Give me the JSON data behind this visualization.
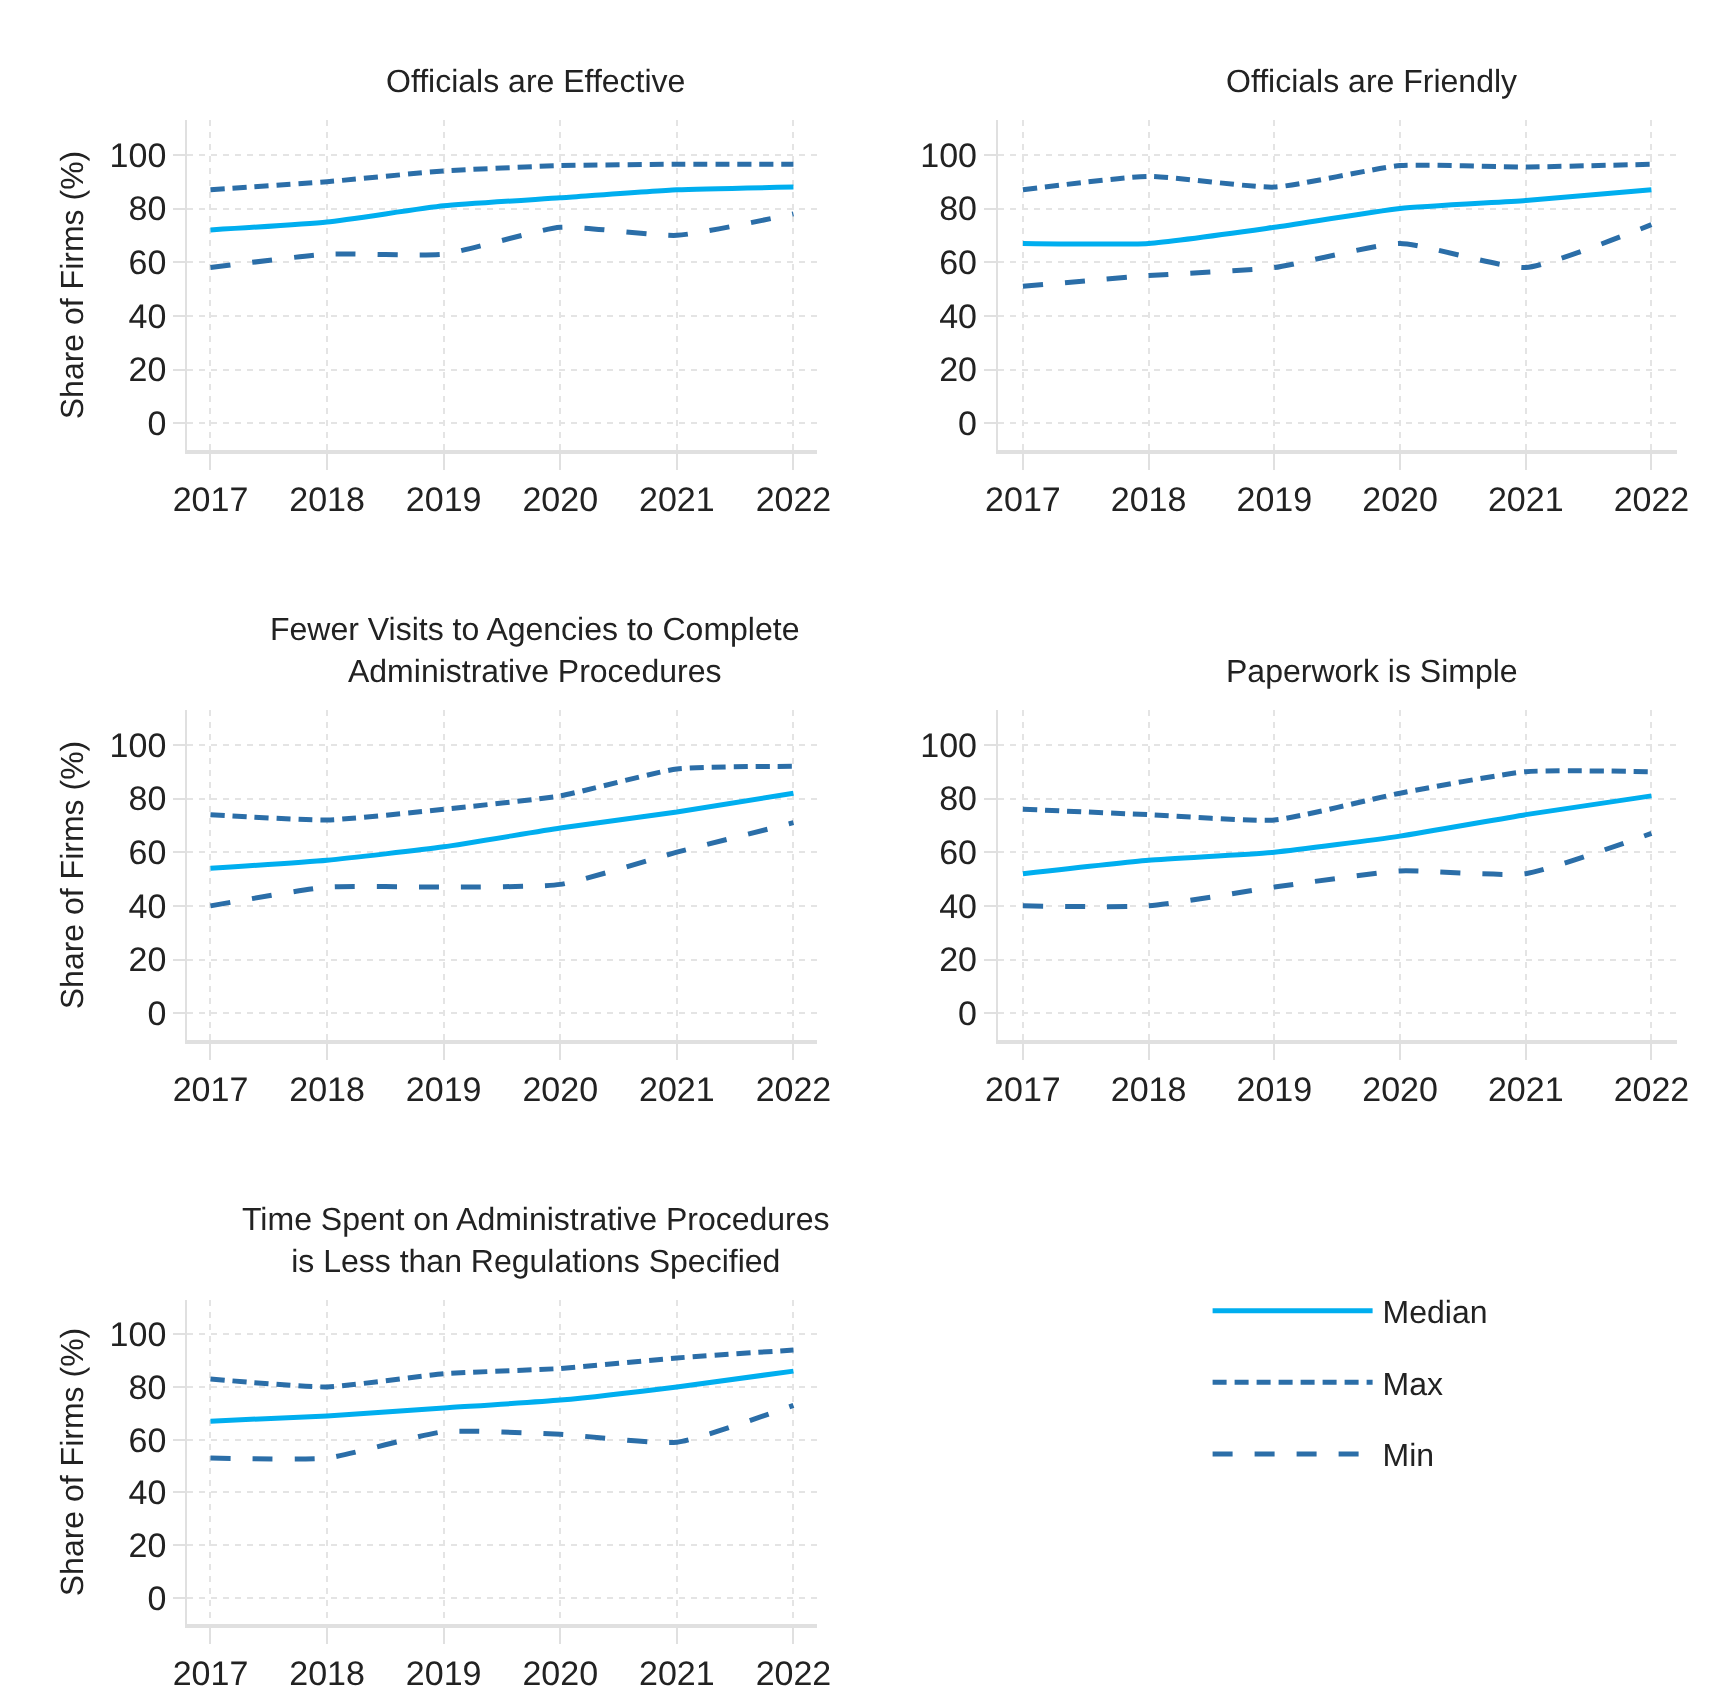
{
  "chart_data": [
    {
      "type": "line",
      "title": "Officials are Effective",
      "ylabel": "Share of Firms (%)",
      "x": [
        2017,
        2018,
        2019,
        2020,
        2021,
        2022
      ],
      "xlim": [
        2016.8,
        2022.2
      ],
      "xticks": [
        2017,
        2018,
        2019,
        2020,
        2021,
        2022
      ],
      "ylim": [
        -10,
        113
      ],
      "yticks": [
        0,
        20,
        40,
        60,
        80,
        100
      ],
      "grid": true,
      "legend": "bottom right",
      "series": [
        {
          "name": "Median",
          "color": "#00aeef",
          "line_style": "solid",
          "values": [
            72,
            75,
            81,
            84,
            87,
            88
          ]
        },
        {
          "name": "Max",
          "color": "#2b6ea8",
          "line_style": "dashed",
          "values": [
            87,
            90,
            94,
            96,
            96.5,
            96.5
          ]
        },
        {
          "name": "Min",
          "color": "#2b6ea8",
          "line_style": "dashed",
          "values": [
            58,
            63,
            63,
            73,
            70,
            78
          ]
        }
      ]
    },
    {
      "type": "line",
      "title": "Officials are Friendly",
      "x": [
        2017,
        2018,
        2019,
        2020,
        2021,
        2022
      ],
      "xlim": [
        2016.8,
        2022.2
      ],
      "xticks": [
        2017,
        2018,
        2019,
        2020,
        2021,
        2022
      ],
      "ylim": [
        -10,
        113
      ],
      "yticks": [
        0,
        20,
        40,
        60,
        80,
        100
      ],
      "grid": true,
      "series": [
        {
          "name": "Median",
          "color": "#00aeef",
          "line_style": "solid",
          "values": [
            67,
            67,
            73,
            80,
            83,
            87
          ]
        },
        {
          "name": "Max",
          "color": "#2b6ea8",
          "line_style": "dashed",
          "values": [
            87,
            92,
            88,
            96,
            95.5,
            96.5
          ]
        },
        {
          "name": "Min",
          "color": "#2b6ea8",
          "line_style": "dashed",
          "values": [
            51,
            55,
            58,
            67,
            58,
            74
          ]
        }
      ]
    },
    {
      "type": "line",
      "title": "Fewer Visits to Agencies to Complete Administrative Procedures",
      "ylabel": "Share of Firms (%)",
      "x": [
        2017,
        2018,
        2019,
        2020,
        2021,
        2022
      ],
      "xlim": [
        2016.8,
        2022.2
      ],
      "xticks": [
        2017,
        2018,
        2019,
        2020,
        2021,
        2022
      ],
      "ylim": [
        -10,
        113
      ],
      "yticks": [
        0,
        20,
        40,
        60,
        80,
        100
      ],
      "grid": true,
      "series": [
        {
          "name": "Median",
          "color": "#00aeef",
          "line_style": "solid",
          "values": [
            54,
            57,
            62,
            69,
            75,
            82
          ]
        },
        {
          "name": "Max",
          "color": "#2b6ea8",
          "line_style": "dashed",
          "values": [
            74,
            72,
            76,
            81,
            91,
            92
          ]
        },
        {
          "name": "Min",
          "color": "#2b6ea8",
          "line_style": "dashed",
          "values": [
            40,
            47,
            47,
            48,
            60,
            71
          ]
        }
      ]
    },
    {
      "type": "line",
      "title": "Paperwork is Simple",
      "x": [
        2017,
        2018,
        2019,
        2020,
        2021,
        2022
      ],
      "xlim": [
        2016.8,
        2022.2
      ],
      "xticks": [
        2017,
        2018,
        2019,
        2020,
        2021,
        2022
      ],
      "ylim": [
        -10,
        113
      ],
      "yticks": [
        0,
        20,
        40,
        60,
        80,
        100
      ],
      "grid": true,
      "series": [
        {
          "name": "Median",
          "color": "#00aeef",
          "line_style": "solid",
          "values": [
            52,
            57,
            60,
            66,
            74,
            81
          ]
        },
        {
          "name": "Max",
          "color": "#2b6ea8",
          "line_style": "dashed",
          "values": [
            76,
            74,
            72,
            82,
            90,
            90
          ]
        },
        {
          "name": "Min",
          "color": "#2b6ea8",
          "line_style": "dashed",
          "values": [
            40,
            40,
            47,
            53,
            52,
            67
          ]
        }
      ]
    },
    {
      "type": "line",
      "title": "Time Spent on Administrative Procedures is Less than Regulations Specified",
      "ylabel": "Share of Firms (%)",
      "x": [
        2017,
        2018,
        2019,
        2020,
        2021,
        2022
      ],
      "xlim": [
        2016.8,
        2022.2
      ],
      "xticks": [
        2017,
        2018,
        2019,
        2020,
        2021,
        2022
      ],
      "ylim": [
        -10,
        113
      ],
      "yticks": [
        0,
        20,
        40,
        60,
        80,
        100
      ],
      "grid": true,
      "series": [
        {
          "name": "Median",
          "color": "#00aeef",
          "line_style": "solid",
          "values": [
            67,
            69,
            72,
            75,
            80,
            86
          ]
        },
        {
          "name": "Max",
          "color": "#2b6ea8",
          "line_style": "dashed",
          "values": [
            83,
            80,
            85,
            87,
            91,
            94
          ]
        },
        {
          "name": "Min",
          "color": "#2b6ea8",
          "line_style": "dashed",
          "values": [
            53,
            53,
            63,
            62,
            59,
            73
          ]
        }
      ]
    }
  ]
}
